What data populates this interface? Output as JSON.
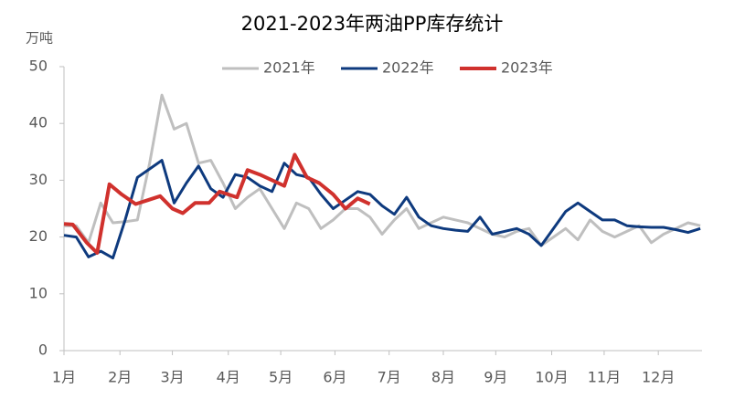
{
  "chart_data": {
    "type": "line",
    "title": "2021-2023年两油PP库存统计",
    "y_unit": "万吨",
    "x": [
      0,
      7,
      14,
      21,
      28,
      35,
      42,
      49,
      56,
      63,
      70,
      77,
      84,
      91,
      98,
      105,
      112,
      119,
      126,
      133,
      140,
      147,
      154,
      161,
      168,
      175,
      182,
      189,
      196,
      203,
      210,
      217,
      224,
      231,
      238,
      245,
      252,
      259,
      266,
      273,
      280,
      287,
      294,
      301,
      308,
      315,
      322,
      329,
      336,
      343,
      350,
      357,
      364
    ],
    "xlim": [
      0,
      365
    ],
    "xticks": [
      {
        "value": 0,
        "label": "1月"
      },
      {
        "value": 32,
        "label": "2月"
      },
      {
        "value": 62,
        "label": "3月"
      },
      {
        "value": 94,
        "label": "4月"
      },
      {
        "value": 124,
        "label": "5月"
      },
      {
        "value": 155,
        "label": "6月"
      },
      {
        "value": 186,
        "label": "7月"
      },
      {
        "value": 217,
        "label": "8月"
      },
      {
        "value": 247,
        "label": "9月"
      },
      {
        "value": 279,
        "label": "10月"
      },
      {
        "value": 309,
        "label": "11月"
      },
      {
        "value": 340,
        "label": "12月"
      }
    ],
    "ylim": [
      0,
      50
    ],
    "yticks": [
      0,
      10,
      20,
      30,
      40,
      50
    ],
    "grid": false,
    "legend": "top",
    "series": [
      {
        "name": "2021年",
        "color": "#bfbfbf",
        "values": [
          22,
          22,
          19,
          26,
          22.5,
          22.7,
          23,
          33,
          45,
          39,
          40,
          33,
          33.5,
          29.5,
          25,
          27,
          28.5,
          25,
          21.5,
          26,
          25,
          21.5,
          23,
          25,
          25,
          23.5,
          20.5,
          23,
          25,
          21.5,
          22.5,
          23.5,
          23,
          22.5,
          21.5,
          20.5,
          20,
          21,
          21.5,
          18.5,
          20,
          21.5,
          19.5,
          23,
          21,
          20,
          21,
          22,
          19,
          20.5,
          21.5,
          22.5,
          22
        ]
      },
      {
        "name": "2022年",
        "color": "#0e3a7e",
        "values": [
          20.3,
          20,
          16.5,
          17.5,
          16.3,
          23,
          30.5,
          32,
          33.5,
          26,
          29.5,
          32.5,
          28.5,
          27,
          31,
          30.5,
          29,
          28,
          33,
          31,
          30.5,
          27.5,
          25,
          26.5,
          28,
          27.5,
          25.5,
          24,
          27,
          23.5,
          22,
          21.5,
          21.2,
          21,
          23.5,
          20.5,
          21,
          21.5,
          20.5,
          18.5,
          21.5,
          24.5,
          26,
          24.5,
          23,
          23,
          22,
          21.8,
          21.7,
          21.7,
          21.3,
          20.8,
          21.5
        ]
      },
      {
        "name": "2023年",
        "color": "#d0312d",
        "x": [
          0,
          5,
          13,
          19,
          26,
          33,
          41,
          48,
          55,
          62,
          68,
          75,
          83,
          89,
          99,
          105,
          112,
          126,
          132,
          139,
          146,
          154,
          161,
          168,
          175
        ],
        "values": [
          22.3,
          22.2,
          19,
          17.2,
          29.3,
          27.5,
          25.8,
          26.5,
          27.2,
          25,
          24.2,
          26,
          26,
          28,
          27,
          31.8,
          31,
          29,
          34.5,
          30.5,
          29.5,
          27.5,
          25,
          26.8,
          25.8
        ]
      }
    ]
  }
}
